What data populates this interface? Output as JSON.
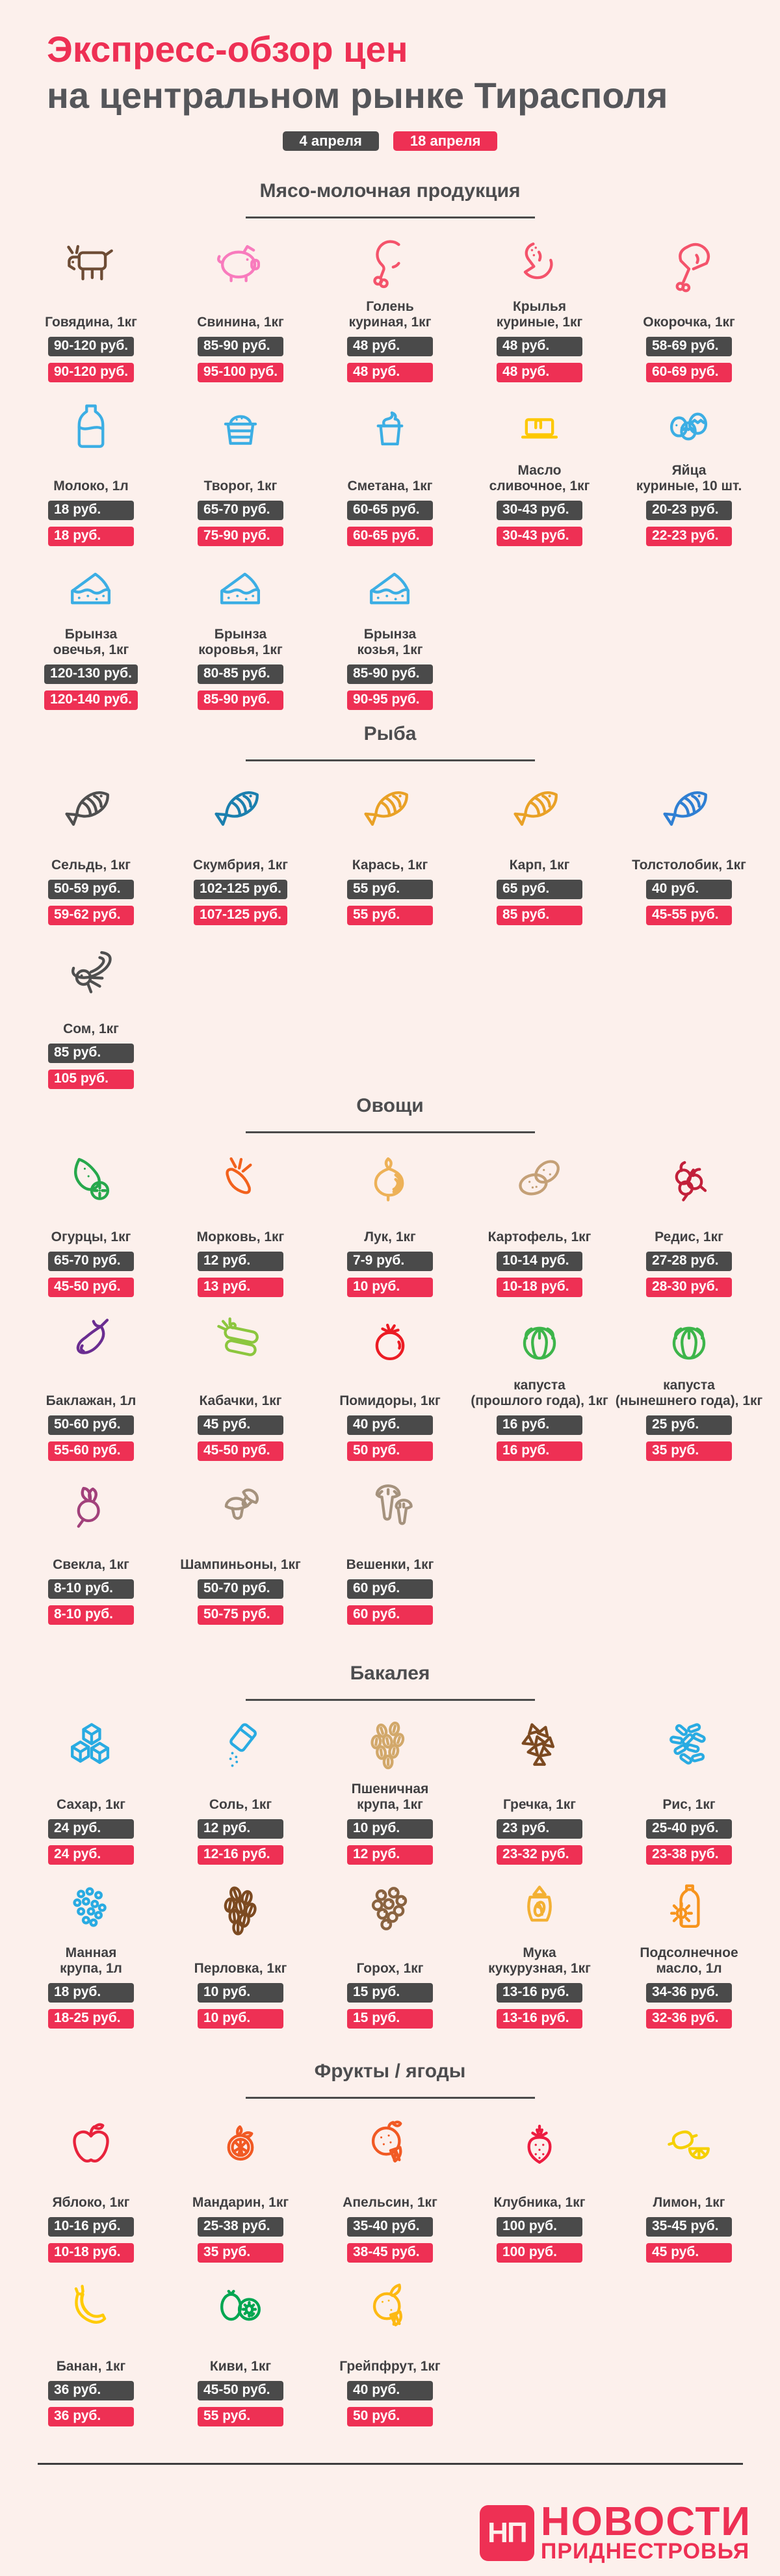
{
  "page": {
    "background_color": "#fcf0ec",
    "accent_color": "#ee3054",
    "dark_color": "#4a4a4a",
    "title_line1": "Экспресс-обзор цен",
    "title_line2": "на центральном рынке Тирасполя",
    "legend": [
      {
        "label": "4 апреля",
        "color": "#4a4a4a"
      },
      {
        "label": "18 апреля",
        "color": "#ee3054"
      }
    ]
  },
  "sections": [
    {
      "title": "Мясо-молочная продукция",
      "rows": [
        [
          {
            "name": "Говядина, 1кг",
            "icon": "cow-icon",
            "color": "#6d4c35",
            "price_apr4": "90-120 руб.",
            "price_apr18": "90-120 руб."
          },
          {
            "name": "Свинина, 1кг",
            "icon": "pig-icon",
            "color": "#f87bbd",
            "price_apr4": "85-90 руб.",
            "price_apr18": "95-100 руб."
          },
          {
            "name": "Голень\nкуриная, 1кг",
            "icon": "chicken-drumstick-icon",
            "color": "#f4536b",
            "price_apr4": "48 руб.",
            "price_apr18": "48 руб."
          },
          {
            "name": "Крылья\nкуриные, 1кг",
            "icon": "chicken-wings-icon",
            "color": "#f4536b",
            "price_apr4": "48 руб.",
            "price_apr18": "48 руб."
          },
          {
            "name": "Окорочка, 1кг",
            "icon": "chicken-leg-quarter-icon",
            "color": "#f4536b",
            "price_apr4": "58-69 руб.",
            "price_apr18": "60-69 руб."
          }
        ],
        [
          {
            "name": "Молоко, 1л",
            "icon": "milk-bottle-icon",
            "color": "#3caee4",
            "price_apr4": "18 руб.",
            "price_apr18": "18 руб."
          },
          {
            "name": "Творог, 1кг",
            "icon": "cottage-cheese-icon",
            "color": "#3caee4",
            "price_apr4": "65-70 руб.",
            "price_apr18": "75-90 руб."
          },
          {
            "name": "Сметана, 1кг",
            "icon": "sour-cream-icon",
            "color": "#3caee4",
            "price_apr4": "60-65 руб.",
            "price_apr18": "60-65 руб."
          },
          {
            "name": "Масло\nсливочное, 1кг",
            "icon": "butter-icon",
            "color": "#fdc800",
            "price_apr4": "30-43 руб.",
            "price_apr18": "30-43 руб."
          },
          {
            "name": "Яйца\nкуриные, 10 шт.",
            "icon": "easter-eggs-icon",
            "color": "#3caee4",
            "price_apr4": "20-23 руб.",
            "price_apr18": "22-23 руб."
          }
        ],
        [
          {
            "name": "Брынза\nовечья, 1кг",
            "icon": "cheese-wedge-icon",
            "color": "#3caee4",
            "price_apr4": "120-130 руб.",
            "price_apr18": "120-140 руб."
          },
          {
            "name": "Брынза\nкоровья, 1кг",
            "icon": "cheese-wedge-icon",
            "color": "#3caee4",
            "price_apr4": "80-85 руб.",
            "price_apr18": "85-90 руб."
          },
          {
            "name": "Брынза\nкозья, 1кг",
            "icon": "cheese-wedge-icon",
            "color": "#3caee4",
            "price_apr4": "85-90 руб.",
            "price_apr18": "90-95 руб."
          }
        ]
      ]
    },
    {
      "title": "Рыба",
      "rows": [
        [
          {
            "name": "Сельдь, 1кг",
            "icon": "herring-fish-icon",
            "color": "#4f4f4f",
            "price_apr4": "50-59 руб.",
            "price_apr18": "59-62 руб."
          },
          {
            "name": "Скумбрия, 1кг",
            "icon": "mackerel-fish-icon",
            "color": "#1b7fae",
            "price_apr4": "102-125 руб.",
            "price_apr18": "107-125 руб."
          },
          {
            "name": "Карась, 1кг",
            "icon": "crucian-fish-icon",
            "color": "#e9a126",
            "price_apr4": "55 руб.",
            "price_apr18": "55 руб."
          },
          {
            "name": "Карп, 1кг",
            "icon": "carp-fish-icon",
            "color": "#e9a126",
            "price_apr4": "65 руб.",
            "price_apr18": "85 руб."
          },
          {
            "name": "Толстолобик, 1кг",
            "icon": "silver-carp-fish-icon",
            "color": "#2f7fd3",
            "price_apr4": "40 руб.",
            "price_apr18": "45-55 руб."
          }
        ],
        [
          {
            "name": "Сом, 1кг",
            "icon": "catfish-icon",
            "color": "#4f4f4f",
            "price_apr4": "85 руб.",
            "price_apr18": "105 руб."
          }
        ]
      ]
    },
    {
      "title": "Овощи",
      "rows": [
        [
          {
            "name": "Огурцы, 1кг",
            "icon": "cucumber-icon",
            "color": "#27a84c",
            "price_apr4": "65-70 руб.",
            "price_apr18": "45-50 руб."
          },
          {
            "name": "Морковь, 1кг",
            "icon": "carrot-icon",
            "color": "#f2611c",
            "price_apr4": "12 руб.",
            "price_apr18": "13 руб."
          },
          {
            "name": "Лук, 1кг",
            "icon": "onion-icon",
            "color": "#edb157",
            "price_apr4": "7-9 руб.",
            "price_apr18": "10 руб."
          },
          {
            "name": "Картофель, 1кг",
            "icon": "potato-icon",
            "color": "#c4a077",
            "price_apr4": "10-14 руб.",
            "price_apr18": "10-18 руб."
          },
          {
            "name": "Редис, 1кг",
            "icon": "radish-icon",
            "color": "#c2203a",
            "price_apr4": "27-28 руб.",
            "price_apr18": "28-30 руб."
          }
        ],
        [
          {
            "name": "Баклажан, 1л",
            "icon": "eggplant-icon",
            "color": "#6a2d91",
            "price_apr4": "50-60 руб.",
            "price_apr18": "55-60 руб."
          },
          {
            "name": "Кабачки, 1кг",
            "icon": "zucchini-icon",
            "color": "#8cc63e",
            "price_apr4": "45 руб.",
            "price_apr18": "45-50 руб."
          },
          {
            "name": "Помидоры, 1кг",
            "icon": "tomato-icon",
            "color": "#ec1c24",
            "price_apr4": "40 руб.",
            "price_apr18": "50 руб."
          },
          {
            "name": "капуста\n(прошлого года), 1кг",
            "icon": "cabbage-icon",
            "color": "#3db54a",
            "price_apr4": "16 руб.",
            "price_apr18": "16 руб."
          },
          {
            "name": "капуста\n(нынешнего года), 1кг",
            "icon": "cabbage-icon",
            "color": "#3db54a",
            "price_apr4": "25 руб.",
            "price_apr18": "35 руб."
          }
        ],
        [
          {
            "name": "Свекла, 1кг",
            "icon": "beet-icon",
            "color": "#a2417b",
            "price_apr4": "8-10 руб.",
            "price_apr18": "8-10 руб."
          },
          {
            "name": "Шампиньоны, 1кг",
            "icon": "champignon-icon",
            "color": "#a5927d",
            "price_apr4": "50-70 руб.",
            "price_apr18": "50-75 руб."
          },
          {
            "name": "Вешенки, 1кг",
            "icon": "oyster-mushroom-icon",
            "color": "#a5927d",
            "price_apr4": "60 руб.",
            "price_apr18": "60 руб."
          }
        ]
      ]
    },
    {
      "title": "Бакалея",
      "rows": [
        [
          {
            "name": "Сахар, 1кг",
            "icon": "sugar-cubes-icon",
            "color": "#29abe2",
            "price_apr4": "24 руб.",
            "price_apr18": "24 руб."
          },
          {
            "name": "Соль, 1кг",
            "icon": "salt-icon",
            "color": "#29abe2",
            "price_apr4": "12 руб.",
            "price_apr18": "12-16 руб."
          },
          {
            "name": "Пшеничная\nкрупа, 1кг",
            "icon": "wheat-groats-icon",
            "color": "#d2a86a",
            "price_apr4": "10 руб.",
            "price_apr18": "12 руб."
          },
          {
            "name": "Гречка, 1кг",
            "icon": "buckwheat-icon",
            "color": "#7c4a21",
            "price_apr4": "23 руб.",
            "price_apr18": "23-32 руб."
          },
          {
            "name": "Рис, 1кг",
            "icon": "rice-icon",
            "color": "#29abe2",
            "price_apr4": "25-40 руб.",
            "price_apr18": "23-38 руб."
          }
        ],
        [
          {
            "name": "Манная\nкрупа, 1л",
            "icon": "semolina-icon",
            "color": "#29abe2",
            "price_apr4": "18 руб.",
            "price_apr18": "18-25 руб."
          },
          {
            "name": "Перловка, 1кг",
            "icon": "barley-icon",
            "color": "#7c4a21",
            "price_apr4": "10 руб.",
            "price_apr18": "10 руб."
          },
          {
            "name": "Горох, 1кг",
            "icon": "peas-icon",
            "color": "#8a6340",
            "price_apr4": "15 руб.",
            "price_apr18": "15 руб."
          },
          {
            "name": "Мука\nкукурузная, 1кг",
            "icon": "flour-bag-icon",
            "color": "#f3b033",
            "price_apr4": "13-16 руб.",
            "price_apr18": "13-16 руб."
          },
          {
            "name": "Подсолнечное\nмасло, 1л",
            "icon": "sunflower-oil-icon",
            "color": "#f7941d",
            "price_apr4": "34-36 руб.",
            "price_apr18": "32-36 руб."
          }
        ]
      ]
    },
    {
      "title": "Фрукты / ягоды",
      "rows": [
        [
          {
            "name": "Яблоко, 1кг",
            "icon": "apple-icon",
            "color": "#e8233c",
            "price_apr4": "10-16 руб.",
            "price_apr18": "10-18 руб."
          },
          {
            "name": "Мандарин, 1кг",
            "icon": "mandarin-icon",
            "color": "#f15a24",
            "price_apr4": "25-38 руб.",
            "price_apr18": "35 руб."
          },
          {
            "name": "Апельсин, 1кг",
            "icon": "orange-icon",
            "color": "#f15a24",
            "price_apr4": "35-40 руб.",
            "price_apr18": "38-45 руб."
          },
          {
            "name": "Клубника, 1кг",
            "icon": "strawberry-icon",
            "color": "#ed1c40",
            "price_apr4": "100 руб.",
            "price_apr18": "100 руб."
          },
          {
            "name": "Лимон, 1кг",
            "icon": "lemon-icon",
            "color": "#f5d000",
            "price_apr4": "35-45 руб.",
            "price_apr18": "45 руб."
          }
        ],
        [
          {
            "name": "Банан, 1кг",
            "icon": "banana-icon",
            "color": "#ffcb05",
            "price_apr4": "36 руб.",
            "price_apr18": "36 руб."
          },
          {
            "name": "Киви, 1кг",
            "icon": "kiwi-icon",
            "color": "#00a651",
            "price_apr4": "45-50 руб.",
            "price_apr18": "55 руб."
          },
          {
            "name": "Грейпфрут, 1кг",
            "icon": "grapefruit-icon",
            "color": "#fdb913",
            "price_apr4": "40 руб.",
            "price_apr18": "50 руб."
          }
        ]
      ]
    }
  ],
  "footer": {
    "logo_monogram": "НП",
    "logo_line1": "НОВОСТИ",
    "logo_line2": "ПРИДНЕСТРОВЬЯ",
    "logo_color": "#ee3054"
  }
}
